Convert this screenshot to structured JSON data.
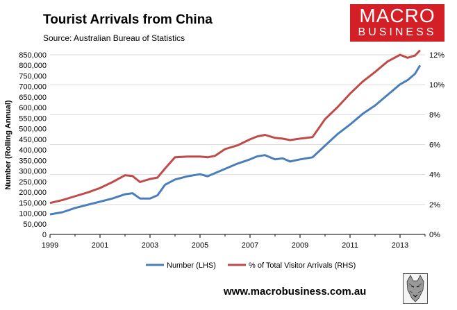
{
  "header": {
    "title": "Tourist Arrivals from China",
    "source": "Source: Australian Bureau of Statistics"
  },
  "logo": {
    "line1": "MACRO",
    "line2": "BUSINESS"
  },
  "footer": {
    "url": "www.macrobusiness.com.au"
  },
  "colors": {
    "number": "#4a7ebb",
    "percent": "#be4b48",
    "brand": "#d51f26",
    "grid": "#d9d9d9"
  },
  "chart_data": {
    "type": "line",
    "title": "Tourist Arrivals from China",
    "ylabel": "Number (Rolling Annual)",
    "xlim": [
      1999,
      2014
    ],
    "ylim": [
      0,
      850000
    ],
    "y2lim": [
      0,
      12
    ],
    "x_ticks": [
      "1999",
      "2001",
      "2003",
      "2005",
      "2007",
      "2009",
      "2011",
      "2013"
    ],
    "y_ticks": [
      "850,000",
      "800,000",
      "750,000",
      "700,000",
      "650,000",
      "600,000",
      "550,000",
      "500,000",
      "450,000",
      "400,000",
      "350,000",
      "300,000",
      "250,000",
      "200,000",
      "150,000",
      "100,000",
      "50,000",
      "0"
    ],
    "y2_ticks": [
      "12%",
      "10%",
      "8%",
      "6%",
      "4%",
      "2%",
      "0%"
    ],
    "grid": true,
    "legend_position": "bottom",
    "series": [
      {
        "name": "Number (LHS)",
        "axis": "left",
        "x": [
          1999.0,
          1999.5,
          2000.0,
          2000.5,
          2001.0,
          2001.5,
          2002.0,
          2002.3,
          2002.6,
          2003.0,
          2003.3,
          2003.6,
          2004.0,
          2004.5,
          2005.0,
          2005.3,
          2005.6,
          2006.0,
          2006.5,
          2007.0,
          2007.3,
          2007.6,
          2008.0,
          2008.3,
          2008.6,
          2009.0,
          2009.5,
          2010.0,
          2010.5,
          2011.0,
          2011.5,
          2012.0,
          2012.5,
          2013.0,
          2013.3,
          2013.6,
          2013.8
        ],
        "y": [
          95000,
          105000,
          125000,
          140000,
          155000,
          170000,
          190000,
          195000,
          170000,
          170000,
          185000,
          235000,
          260000,
          275000,
          285000,
          275000,
          290000,
          310000,
          335000,
          355000,
          370000,
          375000,
          355000,
          360000,
          345000,
          355000,
          365000,
          420000,
          475000,
          520000,
          570000,
          610000,
          660000,
          710000,
          730000,
          760000,
          800000
        ]
      },
      {
        "name": "% of Total Visitor Arrivals (RHS)",
        "axis": "right",
        "x": [
          1999.0,
          1999.5,
          2000.0,
          2000.5,
          2001.0,
          2001.5,
          2002.0,
          2002.3,
          2002.6,
          2003.0,
          2003.3,
          2003.6,
          2004.0,
          2004.5,
          2005.0,
          2005.3,
          2005.6,
          2006.0,
          2006.5,
          2007.0,
          2007.3,
          2007.6,
          2008.0,
          2008.3,
          2008.6,
          2009.0,
          2009.5,
          2010.0,
          2010.5,
          2011.0,
          2011.5,
          2012.0,
          2012.5,
          2013.0,
          2013.3,
          2013.6,
          2013.8
        ],
        "y": [
          2.1,
          2.3,
          2.55,
          2.8,
          3.1,
          3.5,
          3.95,
          3.9,
          3.5,
          3.7,
          3.8,
          4.4,
          5.15,
          5.2,
          5.2,
          5.15,
          5.25,
          5.7,
          5.95,
          6.35,
          6.55,
          6.65,
          6.45,
          6.4,
          6.3,
          6.4,
          6.5,
          7.7,
          8.5,
          9.4,
          10.2,
          10.85,
          11.55,
          12.0,
          11.8,
          11.95,
          12.3
        ]
      }
    ]
  }
}
